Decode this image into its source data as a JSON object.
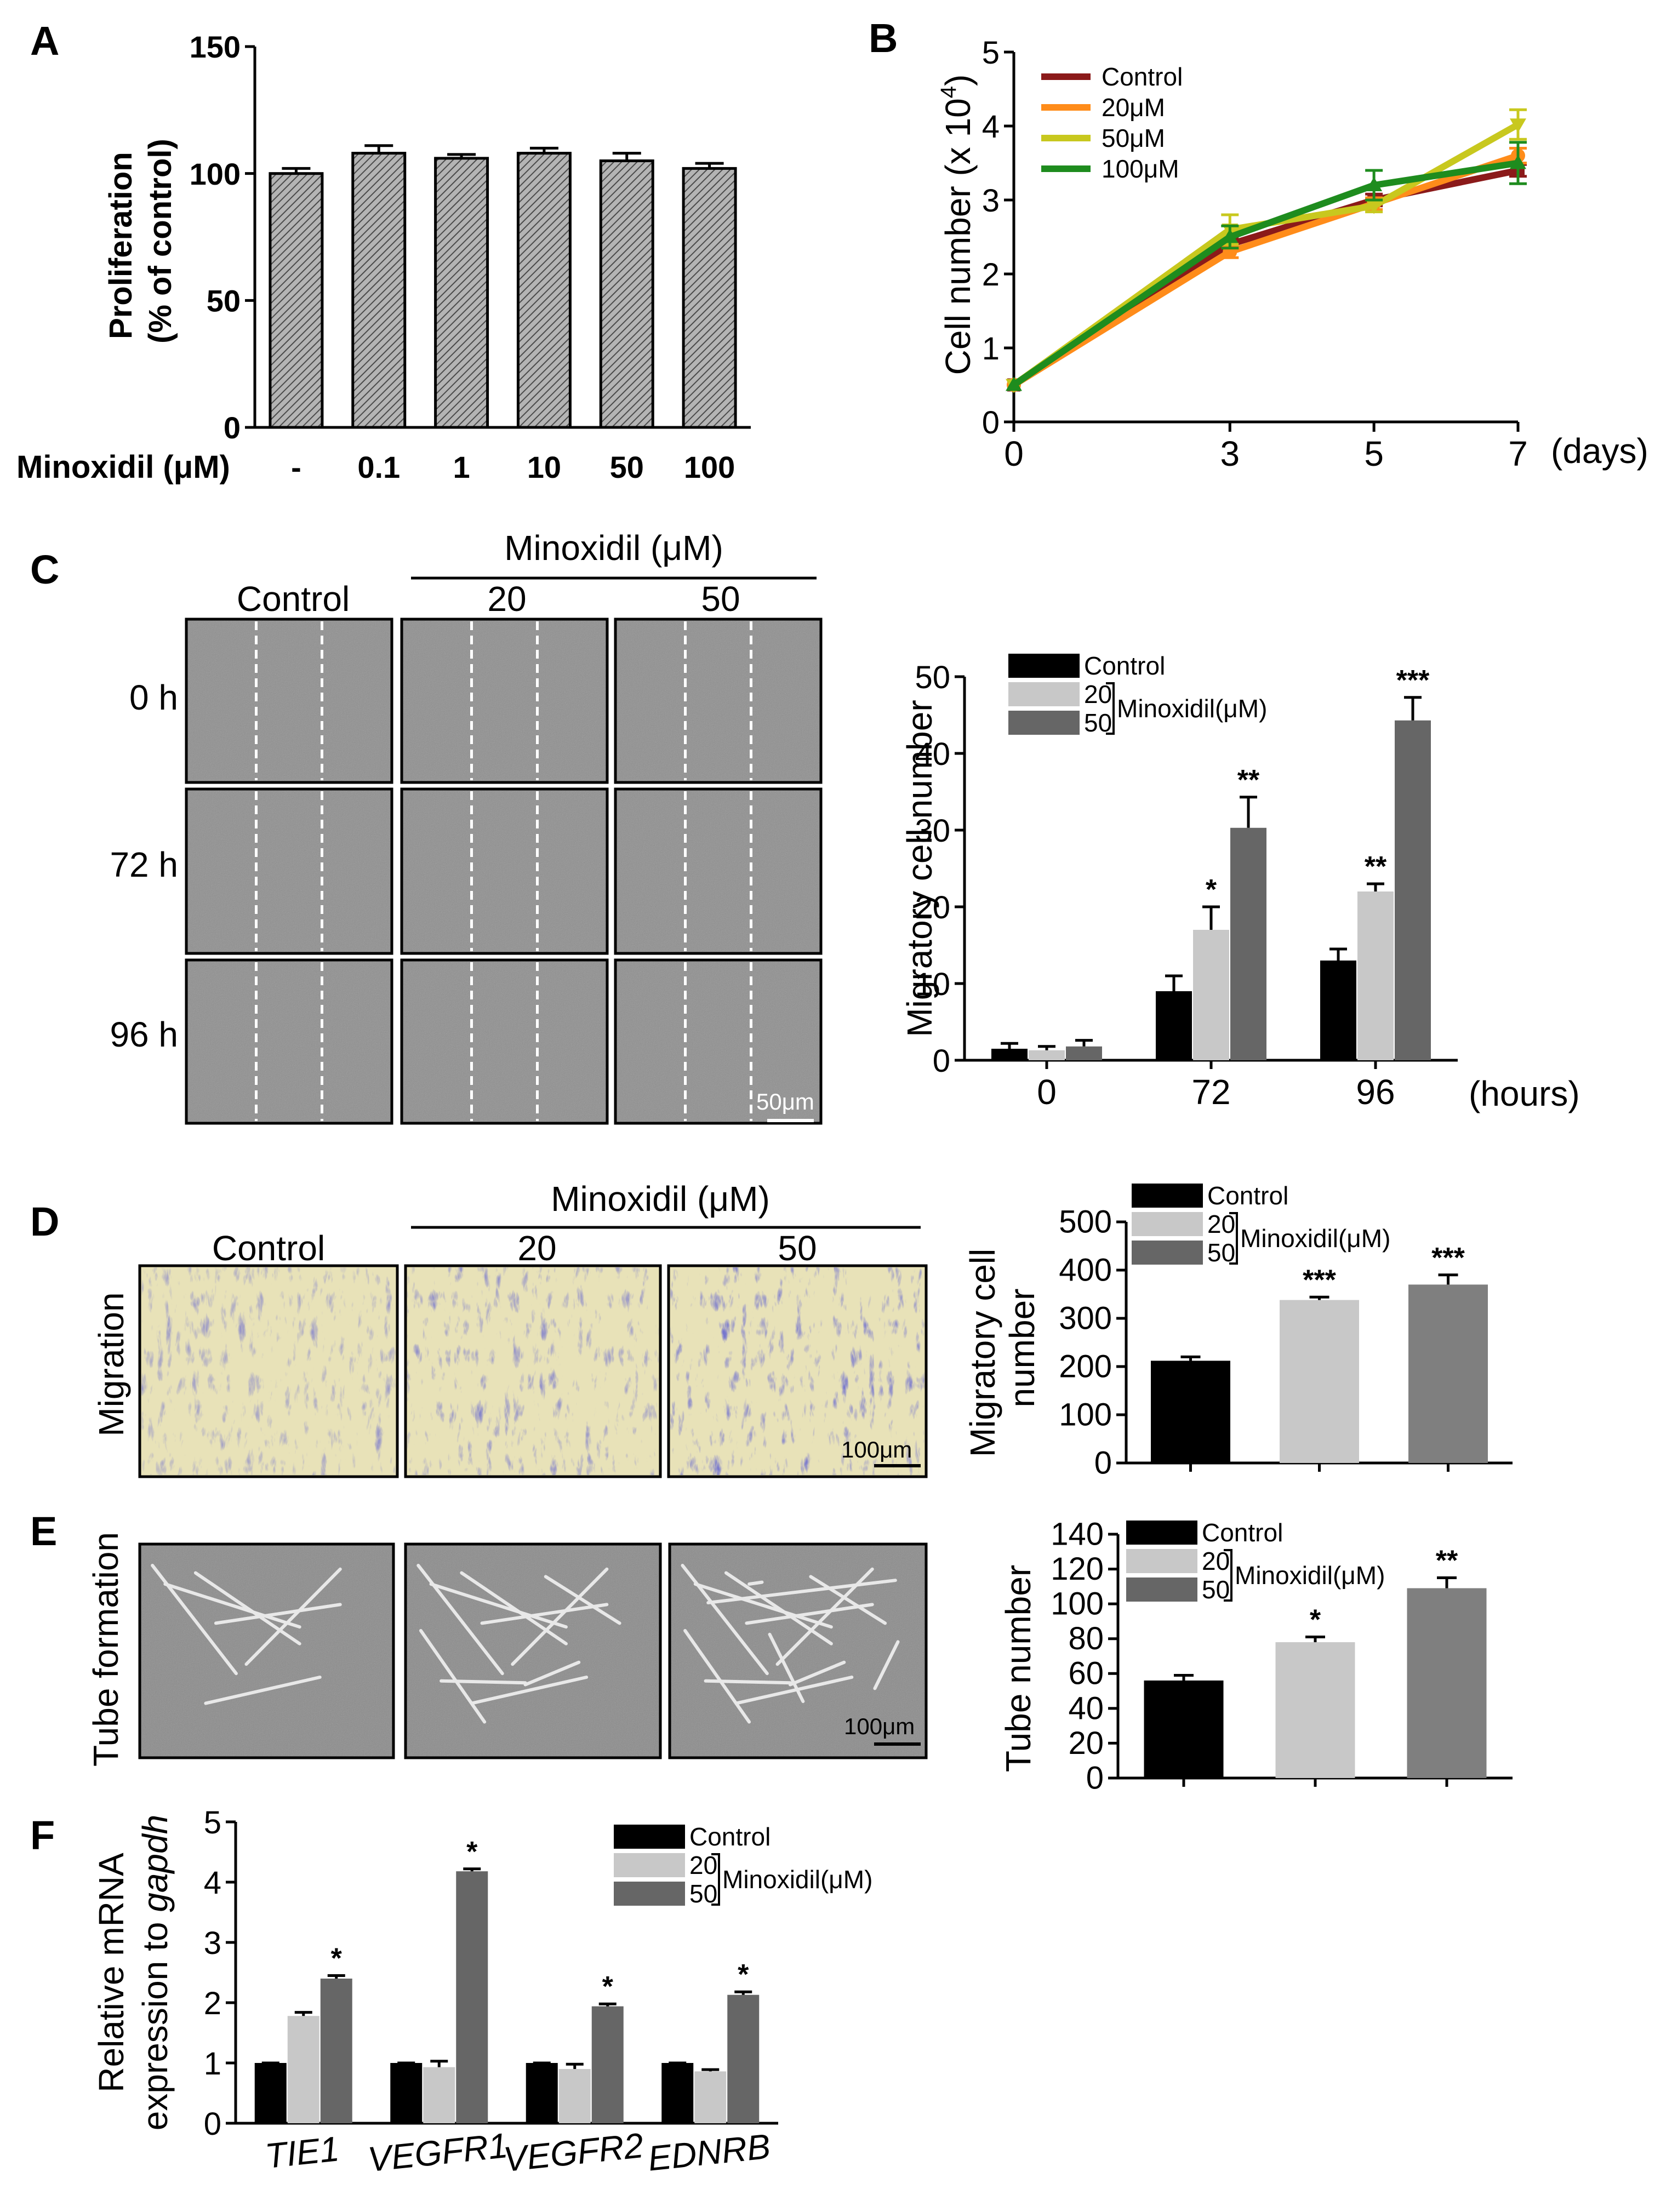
{
  "panels": {
    "A": "A",
    "B": "B",
    "C": "C",
    "D": "D",
    "E": "E",
    "F": "F"
  },
  "colors": {
    "control": "#000000",
    "c20": "#c8c8c8",
    "c50": "#666666",
    "c50e": "#7f7f7f",
    "hatch": "#9a9a9a",
    "lineControl": "#8b1a1a",
    "line20": "#ff8c1a",
    "line50": "#c8c81e",
    "line100": "#1e8c1e",
    "stain": "#3b3bb0",
    "micro": "#8e8e8e"
  },
  "images": {
    "C": {
      "group_label": "Minoxidil (μM)",
      "cols": [
        "Control",
        "20",
        "50"
      ],
      "rows": [
        "0 h",
        "72 h",
        "96 h"
      ],
      "scale_bar": "50μm"
    },
    "D": {
      "group_label": "Minoxidil (μM)",
      "cols": [
        "Control",
        "20",
        "50"
      ],
      "row": "Migration",
      "scale_bar": "100μm"
    },
    "E": {
      "row": "Tube formation",
      "scale_bar": "100μm"
    }
  },
  "chart_data": [
    {
      "panel": "A",
      "type": "bar",
      "xlabel": "Minoxidil (μM)",
      "ylabel_lines": [
        "Proliferation",
        "(% of control)"
      ],
      "categories": [
        "-",
        "0.1",
        "1",
        "10",
        "50",
        "100"
      ],
      "values": [
        100,
        108,
        106,
        108,
        105,
        102
      ],
      "errors": [
        2,
        3,
        1.5,
        2,
        3,
        2
      ],
      "ylim": [
        0,
        150
      ],
      "yticks": [
        0,
        50,
        100,
        150
      ],
      "style": "hatched"
    },
    {
      "panel": "B",
      "type": "line",
      "ylabel": "Cell number (x 10",
      "ylabel_sup": "4",
      "ylabel_end": ")",
      "x": [
        0,
        3,
        5,
        7
      ],
      "xticks": [
        "0",
        "3",
        "5",
        "7"
      ],
      "x_unit": "(days)",
      "ylim": [
        0,
        5
      ],
      "yticks": [
        0,
        1,
        2,
        3,
        4,
        5
      ],
      "series": [
        {
          "name": "Control",
          "values": [
            0.5,
            2.4,
            3.0,
            3.4
          ],
          "errors": [
            0,
            0.08,
            0.08,
            0.08
          ],
          "color": "#8b1a1a"
        },
        {
          "name": "20μM",
          "values": [
            0.5,
            2.3,
            2.95,
            3.6
          ],
          "errors": [
            0,
            0.08,
            0.08,
            0.1
          ],
          "color": "#ff8c1a"
        },
        {
          "name": "50μM",
          "values": [
            0.5,
            2.6,
            2.92,
            4.02
          ],
          "errors": [
            0,
            0.2,
            0.08,
            0.2
          ],
          "color": "#c8c81e"
        },
        {
          "name": "100μM",
          "values": [
            0.5,
            2.5,
            3.2,
            3.5
          ],
          "errors": [
            0,
            0.15,
            0.2,
            0.28
          ],
          "color": "#1e8c1e"
        }
      ]
    },
    {
      "panel": "C",
      "type": "bar",
      "ylabel": "Migratory cell number",
      "categories": [
        "0",
        "72",
        "96"
      ],
      "x_unit": "(hours)",
      "ylim": [
        0,
        50
      ],
      "yticks": [
        0,
        10,
        20,
        30,
        40,
        50
      ],
      "legend": {
        "control": "Control",
        "dose_20": "20",
        "dose_50": "50",
        "group": "Minoxidil(μM)"
      },
      "series": [
        {
          "key": "control",
          "values": [
            1.5,
            9,
            13
          ],
          "errors": [
            0.7,
            2,
            1.5
          ],
          "stars": [
            "",
            "",
            ""
          ]
        },
        {
          "key": "dose_20",
          "values": [
            1.3,
            17,
            22
          ],
          "errors": [
            0.5,
            3,
            1
          ],
          "stars": [
            "",
            "*",
            "**"
          ]
        },
        {
          "key": "dose_50",
          "values": [
            1.8,
            30.3,
            44.3
          ],
          "errors": [
            0.8,
            4,
            3
          ],
          "stars": [
            "",
            "**",
            "***"
          ]
        }
      ]
    },
    {
      "panel": "D",
      "type": "bar",
      "ylabel_lines": [
        "Migratory cell",
        "number"
      ],
      "ylim": [
        0,
        500
      ],
      "yticks": [
        0,
        100,
        200,
        300,
        400,
        500
      ],
      "legend": {
        "control": "Control",
        "dose_20": "20",
        "dose_50": "50",
        "group": "Minoxidil(μM)"
      },
      "values": [
        212,
        338,
        370
      ],
      "errors": [
        8,
        6,
        20
      ],
      "stars": [
        "",
        "***",
        "***"
      ]
    },
    {
      "panel": "E",
      "type": "bar",
      "ylabel": "Tube number",
      "ylim": [
        0,
        140
      ],
      "yticks": [
        0,
        20,
        40,
        60,
        80,
        100,
        120,
        140
      ],
      "legend": {
        "control": "Control",
        "dose_20": "20",
        "dose_50": "50",
        "group": "Minoxidil(μM)"
      },
      "values": [
        56,
        78,
        109
      ],
      "errors": [
        3,
        3,
        6
      ],
      "stars": [
        "",
        "*",
        "**"
      ]
    },
    {
      "panel": "F",
      "type": "bar",
      "ylabel_line1": "Relative mRNA",
      "ylabel_line2_prefix": "expression to ",
      "ylabel_line2_gene": "gapdh",
      "categories": [
        "TIE1",
        "VEGFR1",
        "VEGFR2",
        "EDNRB"
      ],
      "ylim": [
        0,
        5
      ],
      "yticks": [
        0,
        1,
        2,
        3,
        4,
        5
      ],
      "legend": {
        "control": "Control",
        "dose_20": "20",
        "dose_50": "50",
        "group": "Minoxidil(μM)"
      },
      "series": [
        {
          "key": "control",
          "values": [
            1,
            1,
            1,
            1
          ],
          "errors": [
            0,
            0,
            0,
            0
          ],
          "stars": [
            "",
            "",
            "",
            ""
          ]
        },
        {
          "key": "dose_20",
          "values": [
            1.78,
            0.93,
            0.9,
            0.86
          ],
          "errors": [
            0.06,
            0.1,
            0.08,
            0.03
          ],
          "stars": [
            "",
            "",
            "",
            ""
          ]
        },
        {
          "key": "dose_50",
          "values": [
            2.4,
            4.18,
            1.94,
            2.13
          ],
          "errors": [
            0.05,
            0.04,
            0.04,
            0.05
          ],
          "stars": [
            "*",
            "*",
            "*",
            "*"
          ]
        }
      ]
    }
  ]
}
